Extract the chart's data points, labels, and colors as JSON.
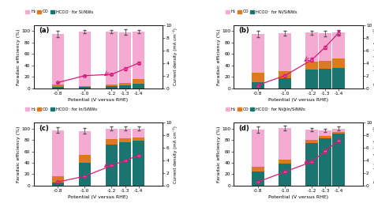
{
  "potentials": [
    -0.8,
    -1.0,
    -1.2,
    -1.3,
    -1.4
  ],
  "panels": [
    {
      "label": "(a)",
      "suffix": "Si/NWs",
      "h2": [
        88,
        95,
        93,
        89,
        83
      ],
      "co": [
        5,
        2,
        3,
        4,
        8
      ],
      "hcoo": [
        2,
        2,
        3,
        5,
        8
      ],
      "h2_err": [
        5,
        3,
        3,
        5,
        3
      ],
      "cd": [
        0.9,
        2.0,
        2.2,
        3.1,
        4.0
      ],
      "cd_err": [
        0.1,
        0.1,
        0.1,
        0.2,
        0.2
      ]
    },
    {
      "label": "(b)",
      "suffix": "Ni/SiNWs",
      "h2": [
        68,
        66,
        50,
        48,
        45
      ],
      "co": [
        17,
        13,
        14,
        14,
        17
      ],
      "hcoo": [
        10,
        17,
        33,
        34,
        35
      ],
      "h2_err": [
        5,
        4,
        4,
        5,
        4
      ],
      "cd": [
        0.5,
        2.0,
        4.5,
        6.5,
        8.8
      ],
      "cd_err": [
        0.1,
        0.2,
        0.3,
        0.3,
        0.4
      ]
    },
    {
      "label": "(c)",
      "suffix": "In/SiNWs",
      "h2": [
        80,
        42,
        18,
        17,
        16
      ],
      "co": [
        12,
        14,
        10,
        7,
        5
      ],
      "hcoo": [
        5,
        40,
        72,
        76,
        79
      ],
      "h2_err": [
        5,
        5,
        3,
        3,
        3
      ],
      "cd": [
        0.6,
        1.5,
        3.2,
        4.0,
        4.8
      ],
      "cd_err": [
        0.1,
        0.1,
        0.2,
        0.2,
        0.2
      ]
    },
    {
      "label": "(d)",
      "suffix": "Ni@In/SiNWs",
      "h2": [
        65,
        55,
        18,
        10,
        6
      ],
      "co": [
        8,
        8,
        5,
        4,
        3
      ],
      "hcoo": [
        25,
        38,
        75,
        83,
        91
      ],
      "h2_err": [
        5,
        4,
        3,
        3,
        3
      ],
      "cd": [
        0.6,
        2.2,
        3.8,
        5.5,
        7.2
      ],
      "cd_err": [
        0.1,
        0.2,
        0.2,
        0.3,
        0.3
      ]
    }
  ],
  "color_h2": "#f5aad2",
  "color_co": "#e07820",
  "color_hcoo": "#1a7570",
  "color_cd": "#d81b7a",
  "bar_err_color": "#555555",
  "cd_ylim": [
    0,
    10
  ],
  "cd_yticks": [
    0,
    2,
    4,
    6,
    8,
    10
  ],
  "bar_ylim": [
    0,
    110
  ],
  "bar_yticks": [
    0,
    20,
    40,
    60,
    80,
    100
  ],
  "xlim": [
    -0.62,
    -1.58
  ],
  "ylabel_bar": "Faradaic efficiency (%)",
  "ylabel_cd": "Current density (mA cm⁻²)",
  "xlabel": "Potential (V versus RHE)",
  "bar_width": 0.09
}
